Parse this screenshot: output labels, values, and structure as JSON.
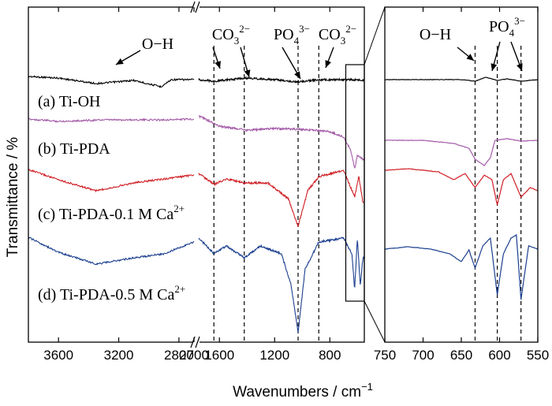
{
  "colors": {
    "ti_oh": "#000000",
    "ti_pda": "#a35aa8",
    "ti_pda_01": "#d01e24",
    "ti_pda_05": "#1b3f8f"
  },
  "chart_data": {
    "type": "line",
    "xlabel": "Wavenumbers / cm",
    "xlabel_sup": "−1",
    "ylabel": "Transmittance / %",
    "grid": false,
    "axis_breaks": [
      "2700-1750"
    ],
    "panels": [
      {
        "name": "main",
        "x_segments": [
          [
            3800,
            2700
          ],
          [
            1750,
            550
          ]
        ],
        "x_ticks": [
          {
            "value": 3600,
            "label": "3600"
          },
          {
            "value": 3200,
            "label": "3200"
          },
          {
            "value": 2800,
            "label": "2800"
          },
          {
            "value": 2700,
            "label": "2700"
          },
          {
            "value": 1600,
            "label": "1600"
          },
          {
            "value": 1200,
            "label": "1200"
          },
          {
            "value": 800,
            "label": "800"
          }
        ],
        "reference_lines": [
          1640,
          1420,
          1030,
          880
        ],
        "annotations": [
          {
            "base": "O−H",
            "sup": "",
            "sub": "",
            "x": 3350
          },
          {
            "base": "CO",
            "sub": "3",
            "sup": "2−",
            "x": 1640
          },
          {
            "base": "PO",
            "sub": "4",
            "sup": "3−",
            "x": 1030
          },
          {
            "base": "CO",
            "sub": "3",
            "sup": "2−",
            "x": 880
          }
        ],
        "zoom_window": [
          650,
          550
        ]
      },
      {
        "name": "inset",
        "xlim": [
          750,
          550
        ],
        "x_ticks": [
          {
            "value": 750,
            "label": "750"
          },
          {
            "value": 700,
            "label": "700"
          },
          {
            "value": 650,
            "label": "650"
          },
          {
            "value": 600,
            "label": "600"
          },
          {
            "value": 550,
            "label": "550"
          }
        ],
        "reference_lines": [
          632,
          603,
          572
        ],
        "annotations": [
          {
            "base": "O−H",
            "sup": "",
            "sub": "",
            "x": 632
          },
          {
            "base": "PO",
            "sub": "4",
            "sup": "3−",
            "x": 603
          }
        ]
      }
    ],
    "series": [
      {
        "name": "(a) Ti-OH",
        "name_base": "(a) Ti-OH",
        "name_sup": "",
        "color": "#000000",
        "points": [
          [
            3800,
            95
          ],
          [
            3600,
            97
          ],
          [
            3350,
            104
          ],
          [
            3100,
            100
          ],
          [
            2920,
            108
          ],
          [
            2850,
            99
          ],
          [
            2600,
            99
          ],
          [
            1750,
            99
          ],
          [
            1640,
            101
          ],
          [
            1420,
            97
          ],
          [
            1200,
            99
          ],
          [
            1030,
            102
          ],
          [
            880,
            99
          ],
          [
            650,
            99
          ],
          [
            560,
            100
          ]
        ],
        "inset_points": [
          [
            750,
            99
          ],
          [
            700,
            99
          ],
          [
            650,
            99
          ],
          [
            632,
            101
          ],
          [
            618,
            96
          ],
          [
            603,
            100
          ],
          [
            590,
            98
          ],
          [
            572,
            101
          ],
          [
            550,
            99
          ]
        ]
      },
      {
        "name": "(b) Ti-PDA",
        "name_base": "(b) Ti-PDA",
        "name_sup": "",
        "color": "#a35aa8",
        "points": [
          [
            3800,
            149
          ],
          [
            3600,
            152
          ],
          [
            3300,
            150
          ],
          [
            2900,
            150
          ],
          [
            2700,
            149
          ],
          [
            1750,
            145
          ],
          [
            1600,
            158
          ],
          [
            1400,
            163
          ],
          [
            1200,
            161
          ],
          [
            1000,
            162
          ],
          [
            800,
            165
          ],
          [
            700,
            172
          ],
          [
            650,
            188
          ],
          [
            620,
            212
          ],
          [
            600,
            195
          ],
          [
            560,
            200
          ]
        ],
        "inset_points": [
          [
            750,
            176
          ],
          [
            700,
            176
          ],
          [
            660,
            180
          ],
          [
            640,
            186
          ],
          [
            632,
            200
          ],
          [
            620,
            208
          ],
          [
            612,
            198
          ],
          [
            606,
            176
          ],
          [
            590,
            174
          ],
          [
            572,
            177
          ],
          [
            550,
            176
          ]
        ]
      },
      {
        "name": "(c) Ti-PDA-0.1 M Ca",
        "name_base": "(c) Ti-PDA-0.1 M Ca",
        "name_sup": "2+",
        "color": "#d01e24",
        "points": [
          [
            3800,
            213
          ],
          [
            3600,
            226
          ],
          [
            3350,
            240
          ],
          [
            3100,
            230
          ],
          [
            2700,
            220
          ],
          [
            1750,
            218
          ],
          [
            1640,
            232
          ],
          [
            1550,
            225
          ],
          [
            1420,
            230
          ],
          [
            1250,
            230
          ],
          [
            1100,
            250
          ],
          [
            1030,
            285
          ],
          [
            960,
            240
          ],
          [
            880,
            222
          ],
          [
            700,
            214
          ],
          [
            620,
            248
          ],
          [
            590,
            222
          ],
          [
            560,
            255
          ]
        ],
        "inset_points": [
          [
            750,
            214
          ],
          [
            720,
            212
          ],
          [
            680,
            216
          ],
          [
            660,
            226
          ],
          [
            645,
            218
          ],
          [
            632,
            236
          ],
          [
            620,
            220
          ],
          [
            610,
            226
          ],
          [
            603,
            258
          ],
          [
            595,
            226
          ],
          [
            585,
            218
          ],
          [
            572,
            248
          ],
          [
            560,
            236
          ],
          [
            550,
            240
          ]
        ]
      },
      {
        "name": "(d) Ti-PDA-0.5 M Ca",
        "name_base": "(d) Ti-PDA-0.5 M Ca",
        "name_sup": "2+",
        "color": "#1b3f8f",
        "points": [
          [
            3800,
            299
          ],
          [
            3600,
            318
          ],
          [
            3350,
            333
          ],
          [
            3100,
            325
          ],
          [
            2900,
            320
          ],
          [
            2700,
            305
          ],
          [
            1750,
            300
          ],
          [
            1640,
            320
          ],
          [
            1550,
            310
          ],
          [
            1420,
            325
          ],
          [
            1300,
            310
          ],
          [
            1150,
            320
          ],
          [
            1080,
            360
          ],
          [
            1030,
            420
          ],
          [
            980,
            340
          ],
          [
            880,
            305
          ],
          [
            700,
            300
          ],
          [
            640,
            320
          ],
          [
            620,
            365
          ],
          [
            600,
            300
          ],
          [
            580,
            360
          ],
          [
            560,
            325
          ]
        ],
        "inset_points": [
          [
            750,
            314
          ],
          [
            720,
            311
          ],
          [
            690,
            314
          ],
          [
            665,
            320
          ],
          [
            650,
            330
          ],
          [
            640,
            315
          ],
          [
            632,
            338
          ],
          [
            622,
            310
          ],
          [
            612,
            300
          ],
          [
            603,
            372
          ],
          [
            595,
            320
          ],
          [
            585,
            300
          ],
          [
            578,
            296
          ],
          [
            572,
            378
          ],
          [
            562,
            310
          ],
          [
            550,
            314
          ]
        ]
      }
    ]
  }
}
